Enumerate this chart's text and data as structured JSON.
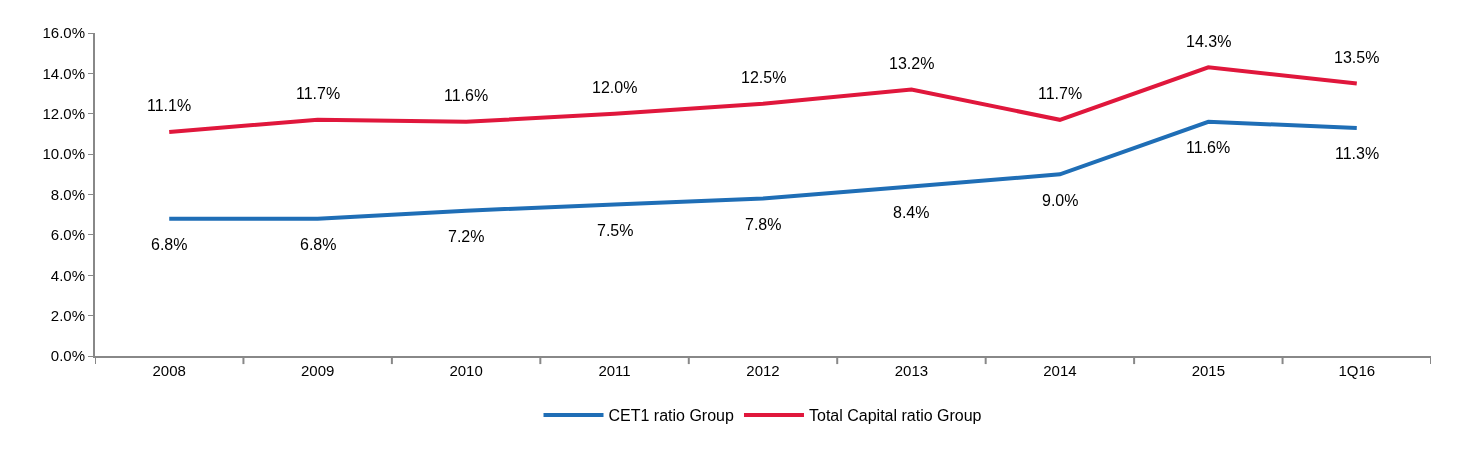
{
  "chart_data": {
    "type": "line",
    "categories": [
      "2008",
      "2009",
      "2010",
      "2011",
      "2012",
      "2013",
      "2014",
      "2015",
      "1Q16"
    ],
    "series": [
      {
        "name": "CET1 ratio Group",
        "color": "#1f6eb6",
        "values": [
          6.8,
          6.8,
          7.2,
          7.5,
          7.8,
          8.4,
          9.0,
          11.6,
          11.3
        ],
        "value_labels": [
          "6.8%",
          "6.8%",
          "7.2%",
          "7.5%",
          "7.8%",
          "8.4%",
          "9.0%",
          "11.6%",
          "11.3%"
        ]
      },
      {
        "name": "Total Capital ratio Group",
        "color": "#e0173c",
        "values": [
          11.1,
          11.7,
          11.6,
          12.0,
          12.5,
          13.2,
          11.7,
          14.3,
          13.5
        ],
        "value_labels": [
          "11.1%",
          "11.7%",
          "11.6%",
          "12.0%",
          "12.5%",
          "13.2%",
          "11.7%",
          "14.3%",
          "13.5%"
        ]
      }
    ],
    "ylim": [
      0,
      16
    ],
    "yticks": [
      {
        "value": 0,
        "label": "0.0%"
      },
      {
        "value": 2,
        "label": "2.0%"
      },
      {
        "value": 4,
        "label": "4.0%"
      },
      {
        "value": 6,
        "label": "6.0%"
      },
      {
        "value": 8,
        "label": "8.0%"
      },
      {
        "value": 10,
        "label": "10.0%"
      },
      {
        "value": 12,
        "label": "12.0%"
      },
      {
        "value": 14,
        "label": "14.0%"
      },
      {
        "value": 16,
        "label": "16.0%"
      }
    ],
    "legend": "bottom",
    "marker": "none",
    "line_style": "solid"
  }
}
